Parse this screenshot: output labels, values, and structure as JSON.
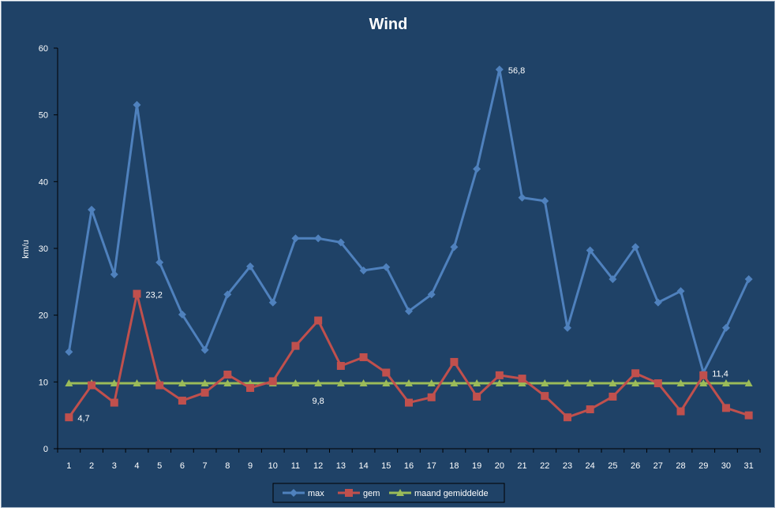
{
  "chart_data": {
    "type": "line",
    "title": "Wind",
    "xlabel": "",
    "ylabel": "km/u",
    "ylim": [
      0,
      60
    ],
    "yticks": [
      0,
      10,
      20,
      30,
      40,
      50,
      60
    ],
    "x": [
      1,
      2,
      3,
      4,
      5,
      6,
      7,
      8,
      9,
      10,
      11,
      12,
      13,
      14,
      15,
      16,
      17,
      18,
      19,
      20,
      21,
      22,
      23,
      24,
      25,
      26,
      27,
      28,
      29,
      30,
      31
    ],
    "series": [
      {
        "name": "max",
        "color": "#4f81bd",
        "marker": "diamond",
        "values": [
          14.5,
          35.8,
          26.1,
          51.5,
          27.9,
          20.1,
          14.8,
          23.1,
          27.3,
          21.9,
          31.5,
          31.5,
          30.9,
          26.7,
          27.2,
          20.6,
          23.1,
          30.2,
          41.9,
          56.8,
          37.6,
          37.1,
          18.1,
          29.7,
          25.4,
          30.2,
          21.9,
          23.6,
          11.4,
          18.1,
          25.4
        ]
      },
      {
        "name": "gem",
        "color": "#c0504d",
        "marker": "square",
        "values": [
          4.7,
          9.5,
          6.9,
          23.2,
          9.5,
          7.2,
          8.4,
          11.1,
          9.1,
          10.1,
          15.4,
          19.2,
          12.4,
          13.7,
          11.4,
          6.9,
          7.7,
          13.0,
          7.8,
          11.0,
          10.5,
          7.9,
          4.7,
          5.9,
          7.8,
          11.3,
          9.8,
          5.6,
          11.0,
          6.1,
          5.0
        ]
      },
      {
        "name": "maand gemiddelde",
        "color": "#9bbb59",
        "marker": "triangle",
        "values": [
          9.8,
          9.8,
          9.8,
          9.8,
          9.8,
          9.8,
          9.8,
          9.8,
          9.8,
          9.8,
          9.8,
          9.8,
          9.8,
          9.8,
          9.8,
          9.8,
          9.8,
          9.8,
          9.8,
          9.8,
          9.8,
          9.8,
          9.8,
          9.8,
          9.8,
          9.8,
          9.8,
          9.8,
          9.8,
          9.8,
          9.8
        ]
      }
    ],
    "annotations": [
      {
        "series": "max",
        "x": 20,
        "text": "56,8"
      },
      {
        "series": "max",
        "x": 29,
        "text": "11,4"
      },
      {
        "series": "gem",
        "x": 4,
        "text": "23,2"
      },
      {
        "series": "gem",
        "x": 1,
        "text": "4,7"
      },
      {
        "series": "maand gemiddelde",
        "x": 12,
        "text": "9,8"
      }
    ],
    "legend_position": "bottom",
    "grid": false
  }
}
